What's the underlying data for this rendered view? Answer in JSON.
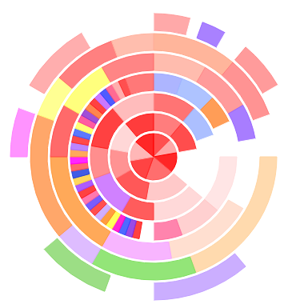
{
  "chart_data": {
    "type": "sunburst",
    "rings": [
      {
        "values": [
          45,
          35,
          50,
          70,
          60,
          50,
          50
        ],
        "colors": [
          "#ff3030",
          "#ff9999",
          "#ff0000",
          "#ff5555",
          "#ff2222",
          "#ffaaaa",
          "#ff0000"
        ]
      },
      {
        "values": [
          40,
          40,
          50,
          60,
          50,
          40,
          40,
          40
        ],
        "colors": [
          "#ff6666",
          "#ff2e2e",
          "#ffffff",
          "#ffc0c0",
          "#ff3b3b",
          "#ff8080",
          "#ffd0d0",
          "#ff1a1a"
        ]
      },
      {
        "values": [
          40,
          30,
          60,
          50,
          30,
          40,
          30,
          40,
          40
        ],
        "colors": [
          "#ff5c5c",
          "#9db4ff",
          "#ffffff",
          "#ffd2d2",
          "#ff4040",
          "#c86bff",
          "#ff7a7a",
          "#ff2020",
          "#ffb0b0"
        ]
      },
      {
        "values": [
          20,
          25,
          20,
          25,
          40,
          30,
          20,
          10,
          5,
          5,
          5,
          5,
          5,
          5,
          5,
          5,
          5,
          5,
          5,
          5,
          5,
          5,
          5,
          5,
          5,
          5,
          5,
          5,
          5,
          5,
          5,
          5,
          5,
          5,
          5,
          5,
          5,
          5,
          20
        ],
        "colors": [
          "#9fa8ff",
          "#a0b8ff",
          "#ff8c3a",
          "#ffffff",
          "#ffe0e0",
          "#ffc8c8",
          "#ff6f9f",
          "#ffffff",
          "#ff2020",
          "#8a2be2",
          "#3050ff",
          "#ff00cc",
          "#ffff40",
          "#ff8c20",
          "#c8a0ff",
          "#ff3030",
          "#6040ff",
          "#ff60a0",
          "#ff2020",
          "#a040ff",
          "#ffd040",
          "#2040e0",
          "#ff5050",
          "#ff00ff",
          "#ff9a40",
          "#b070ff",
          "#ff2a2a",
          "#4060ff",
          "#ffff60",
          "#ff4090",
          "#9030d0",
          "#ff7030",
          "#ff2020",
          "#c060ff",
          "#3040ff",
          "#ff5080",
          "#ffa0a0",
          "#ff3030",
          "#ff6060"
        ]
      },
      {
        "values": [
          30,
          30,
          20,
          40,
          50,
          40,
          60,
          30,
          30,
          30
        ],
        "colors": [
          "#ffb0a0",
          "#ff8a8a",
          "#9966ff",
          "#ffffff",
          "#ffd9c8",
          "#f7a8ff",
          "#ff9a3c",
          "#ff5050",
          "#ffff66",
          "#ff7070"
        ]
      },
      {
        "values": [
          40,
          30,
          20,
          70,
          50,
          20,
          60,
          20,
          30,
          20
        ],
        "colors": [
          "#ffa88a",
          "#ff8080",
          "#ffffff",
          "#ffd4a0",
          "#80e060",
          "#d8b0ff",
          "#ff9850",
          "#ffff80",
          "#ff6a6a",
          "#ffb3a0"
        ]
      },
      {
        "values": [
          15,
          5,
          10,
          10,
          20,
          10,
          30,
          40,
          40,
          20,
          30,
          40,
          20,
          10,
          30,
          30
        ],
        "colors": [
          "#ff9a9a",
          "#ffffff",
          "#9a6bff",
          "#ffffff",
          "#ff8a8a",
          "#ffffff",
          "#ffffff",
          "#ffffff",
          "#c2a0ff",
          "#ffffff",
          "#8bd870",
          "#ffffff",
          "#ff80ff",
          "#ffffff",
          "#ffa0a0",
          "#ffffff"
        ]
      }
    ]
  }
}
